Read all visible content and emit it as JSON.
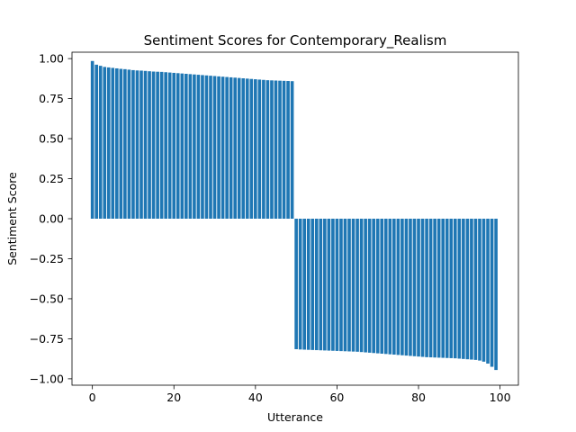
{
  "chart_data": {
    "type": "bar",
    "title": "Sentiment Scores for Contemporary_Realism",
    "xlabel": "Utterance",
    "ylabel": "Sentiment Score",
    "xlim": [
      -5,
      104.5
    ],
    "ylim": [
      -1.04,
      1.04
    ],
    "xticks": [
      0,
      20,
      40,
      60,
      80,
      100
    ],
    "yticks": [
      -1.0,
      -0.75,
      -0.5,
      -0.25,
      0.0,
      0.25,
      0.5,
      0.75,
      1.0
    ],
    "grid": false,
    "color": "#1f77b4",
    "x": [
      0,
      1,
      2,
      3,
      4,
      5,
      6,
      7,
      8,
      9,
      10,
      11,
      12,
      13,
      14,
      15,
      16,
      17,
      18,
      19,
      20,
      21,
      22,
      23,
      24,
      25,
      26,
      27,
      28,
      29,
      30,
      31,
      32,
      33,
      34,
      35,
      36,
      37,
      38,
      39,
      40,
      41,
      42,
      43,
      44,
      45,
      46,
      47,
      48,
      49,
      50,
      51,
      52,
      53,
      54,
      55,
      56,
      57,
      58,
      59,
      60,
      61,
      62,
      63,
      64,
      65,
      66,
      67,
      68,
      69,
      70,
      71,
      72,
      73,
      74,
      75,
      76,
      77,
      78,
      79,
      80,
      81,
      82,
      83,
      84,
      85,
      86,
      87,
      88,
      89,
      90,
      91,
      92,
      93,
      94,
      95,
      96,
      97,
      98,
      99
    ],
    "values": [
      0.985,
      0.962,
      0.955,
      0.948,
      0.945,
      0.942,
      0.939,
      0.936,
      0.934,
      0.931,
      0.928,
      0.926,
      0.925,
      0.923,
      0.921,
      0.919,
      0.918,
      0.917,
      0.915,
      0.913,
      0.911,
      0.909,
      0.907,
      0.905,
      0.903,
      0.901,
      0.899,
      0.897,
      0.895,
      0.893,
      0.891,
      0.889,
      0.887,
      0.885,
      0.883,
      0.881,
      0.879,
      0.877,
      0.875,
      0.873,
      0.871,
      0.869,
      0.867,
      0.865,
      0.864,
      0.863,
      0.862,
      0.861,
      0.86,
      0.859,
      -0.815,
      -0.817,
      -0.818,
      -0.819,
      -0.82,
      -0.821,
      -0.822,
      -0.823,
      -0.824,
      -0.825,
      -0.826,
      -0.827,
      -0.828,
      -0.829,
      -0.83,
      -0.831,
      -0.833,
      -0.835,
      -0.837,
      -0.839,
      -0.841,
      -0.843,
      -0.845,
      -0.847,
      -0.849,
      -0.851,
      -0.853,
      -0.855,
      -0.857,
      -0.859,
      -0.861,
      -0.863,
      -0.865,
      -0.866,
      -0.867,
      -0.868,
      -0.869,
      -0.87,
      -0.871,
      -0.872,
      -0.874,
      -0.876,
      -0.878,
      -0.88,
      -0.882,
      -0.886,
      -0.893,
      -0.905,
      -0.925,
      -0.945
    ]
  }
}
